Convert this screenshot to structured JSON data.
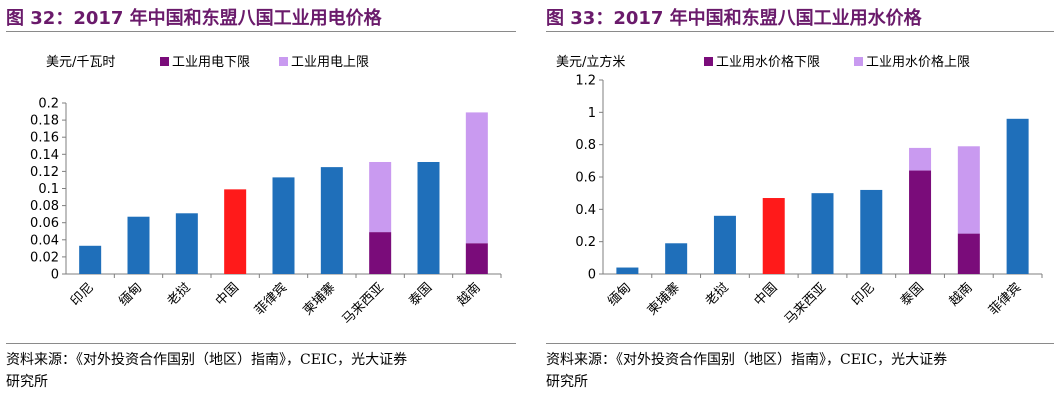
{
  "charts": [
    {
      "figure_title": "图 32：2017 年中国和东盟八国工业用电价格",
      "source_line1": "资料来源：《对外投资合作国别（地区）指南》，CEIC，光大证券",
      "source_line2": "研究所",
      "colors": {
        "lower": "#1f6fba",
        "upper": "#c99af0",
        "highlight": "#ff1a1a",
        "split_lower": "#7a0c7a",
        "legend_lower": "#7a0c7a",
        "legend_upper": "#c99af0"
      },
      "chart_data": {
        "type": "bar",
        "stacked": true,
        "ylabel": "美元/千瓦时",
        "ylim": [
          0,
          0.2
        ],
        "yticks": [
          "0",
          "0.02",
          "0.04",
          "0.06",
          "0.08",
          "0.1",
          "0.12",
          "0.14",
          "0.16",
          "0.18",
          "0.2"
        ],
        "grid": false,
        "legend_position": "top",
        "categories": [
          "印尼",
          "缅甸",
          "老挝",
          "中国",
          "菲律宾",
          "柬埔寨",
          "马来西亚",
          "泰国",
          "越南"
        ],
        "series": [
          {
            "name": "工业用电下限",
            "values": [
              0.033,
              0.067,
              0.071,
              0.099,
              0.113,
              0.125,
              0.049,
              0.131,
              0.036
            ]
          },
          {
            "name": "工业用电上限",
            "values": [
              0,
              0,
              0,
              0,
              0,
              0,
              0.082,
              0,
              0.153
            ]
          }
        ],
        "highlight_category": "中国",
        "split_categories": [
          "马来西亚",
          "越南"
        ]
      }
    },
    {
      "figure_title": "图 33：2017 年中国和东盟八国工业用水价格",
      "source_line1": "资料来源：《对外投资合作国别（地区）指南》，CEIC，光大证券",
      "source_line2": "研究所",
      "colors": {
        "lower": "#1f6fba",
        "upper": "#c99af0",
        "highlight": "#ff1a1a",
        "split_lower": "#7a0c7a",
        "legend_lower": "#7a0c7a",
        "legend_upper": "#c99af0"
      },
      "chart_data": {
        "type": "bar",
        "stacked": true,
        "ylabel": "美元/立方米",
        "ylim": [
          0,
          1.2
        ],
        "yticks": [
          "0",
          "0.2",
          "0.4",
          "0.6",
          "0.8",
          "1",
          "1.2"
        ],
        "grid": false,
        "legend_position": "top",
        "categories": [
          "缅甸",
          "柬埔寨",
          "老挝",
          "中国",
          "马来西亚",
          "印尼",
          "泰国",
          "越南",
          "菲律宾"
        ],
        "series": [
          {
            "name": "工业用水价格下限",
            "values": [
              0.04,
              0.19,
              0.36,
              0.47,
              0.5,
              0.52,
              0.64,
              0.25,
              0.96
            ]
          },
          {
            "name": "工业用水价格上限",
            "values": [
              0,
              0,
              0,
              0,
              0,
              0,
              0.14,
              0.54,
              0
            ]
          }
        ],
        "highlight_category": "中国",
        "split_categories": [
          "泰国",
          "越南"
        ]
      }
    }
  ]
}
